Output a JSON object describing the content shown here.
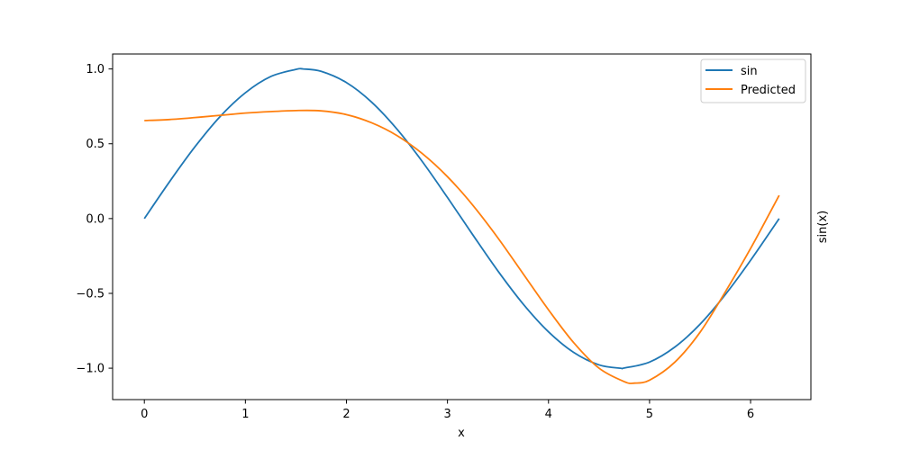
{
  "chart_data": {
    "type": "line",
    "title": "",
    "xlabel": "x",
    "ylabel": "sin(x)",
    "xlim": [
      -0.314,
      6.597
    ],
    "ylim": [
      -1.21,
      1.1
    ],
    "xticks": [
      0,
      1,
      2,
      3,
      4,
      5,
      6
    ],
    "xtick_labels": [
      "0",
      "1",
      "2",
      "3",
      "4",
      "5",
      "6"
    ],
    "yticks": [
      -1.0,
      -0.5,
      0.0,
      0.5,
      1.0
    ],
    "ytick_labels": [
      "−1.0",
      "−0.5",
      "0.0",
      "0.5",
      "1.0"
    ],
    "grid": false,
    "legend_position": "top-right",
    "series": [
      {
        "name": "sin",
        "color": "#1f77b4",
        "x": [
          0.0,
          0.25,
          0.5,
          0.75,
          1.0,
          1.25,
          1.5,
          1.571,
          1.75,
          2.0,
          2.25,
          2.5,
          2.75,
          3.0,
          3.25,
          3.5,
          3.75,
          4.0,
          4.25,
          4.5,
          4.712,
          4.75,
          5.0,
          5.25,
          5.5,
          5.75,
          6.0,
          6.283
        ],
        "y": [
          0.0,
          0.247,
          0.479,
          0.682,
          0.841,
          0.949,
          0.997,
          1.0,
          0.984,
          0.909,
          0.778,
          0.598,
          0.382,
          0.141,
          -0.108,
          -0.351,
          -0.572,
          -0.757,
          -0.895,
          -0.978,
          -1.0,
          -0.999,
          -0.959,
          -0.859,
          -0.706,
          -0.508,
          -0.279,
          0.0
        ]
      },
      {
        "name": "Predicted",
        "color": "#ff7f0e",
        "x": [
          0.0,
          0.25,
          0.5,
          0.75,
          1.0,
          1.25,
          1.5,
          1.75,
          2.0,
          2.25,
          2.5,
          2.75,
          3.0,
          3.25,
          3.5,
          3.75,
          4.0,
          4.25,
          4.5,
          4.75,
          4.85,
          5.0,
          5.25,
          5.5,
          5.75,
          6.0,
          6.283
        ],
        "y": [
          0.655,
          0.662,
          0.675,
          0.69,
          0.705,
          0.715,
          0.722,
          0.72,
          0.695,
          0.64,
          0.555,
          0.435,
          0.28,
          0.09,
          -0.13,
          -0.37,
          -0.61,
          -0.83,
          -1.0,
          -1.09,
          -1.1,
          -1.08,
          -0.96,
          -0.76,
          -0.49,
          -0.2,
          0.155
        ]
      }
    ]
  }
}
